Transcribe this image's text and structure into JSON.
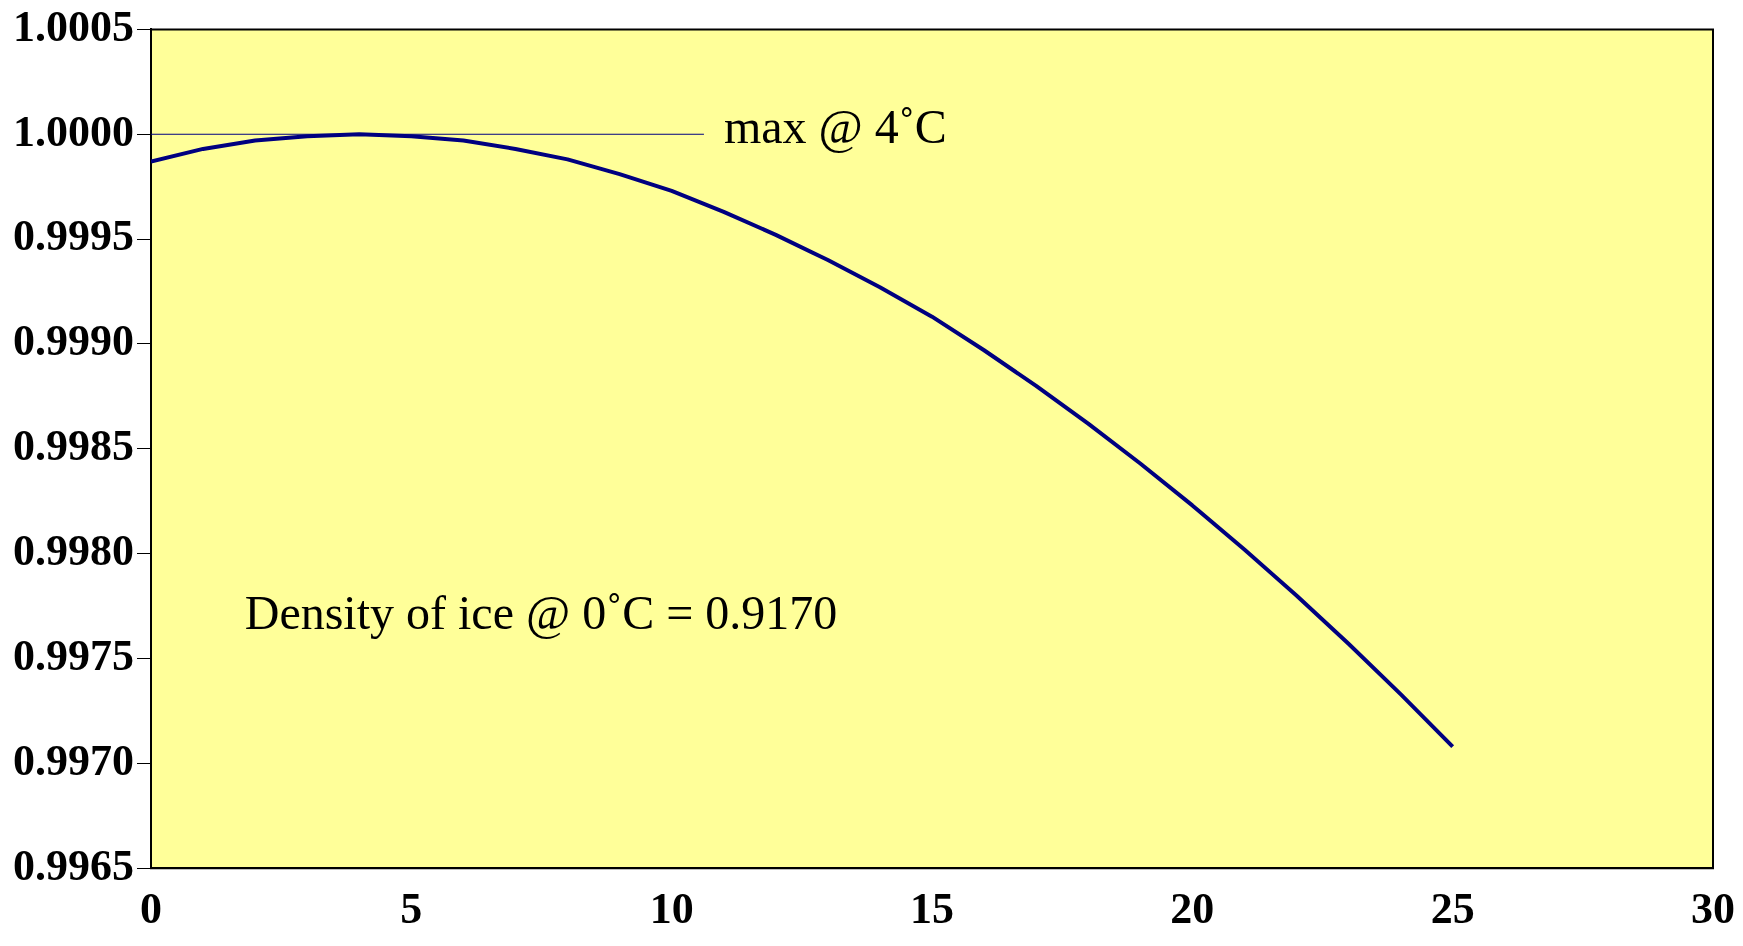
{
  "chart_data": {
    "type": "line",
    "x": [
      0,
      1,
      2,
      3,
      4,
      5,
      6,
      7,
      8,
      9,
      10,
      11,
      12,
      13,
      14,
      15,
      16,
      17,
      18,
      19,
      20,
      21,
      22,
      23,
      24,
      25
    ],
    "series": [
      {
        "color": "#000080",
        "values": [
          0.99987,
          0.99993,
          0.99997,
          0.99999,
          1.0,
          0.99999,
          0.99997,
          0.99993,
          0.99988,
          0.99981,
          0.99973,
          0.99963,
          0.99952,
          0.9994,
          0.99927,
          0.99913,
          0.99897,
          0.9988,
          0.99862,
          0.99843,
          0.99823,
          0.99802,
          0.9978,
          0.99757,
          0.99733,
          0.99708
        ]
      }
    ],
    "xlim": [
      0,
      30
    ],
    "xticks": [
      0,
      5,
      10,
      15,
      20,
      25,
      30
    ],
    "ylim": [
      0.9965,
      1.0005
    ],
    "yticks": [
      {
        "value": 0.9965,
        "label": "0.9965"
      },
      {
        "value": 0.997,
        "label": "0.9970"
      },
      {
        "value": 0.9975,
        "label": "0.9975"
      },
      {
        "value": 0.998,
        "label": "0.9980"
      },
      {
        "value": 0.9985,
        "label": "0.9985"
      },
      {
        "value": 0.999,
        "label": "0.9990"
      },
      {
        "value": 0.9995,
        "label": "0.9995"
      },
      {
        "value": 1.0,
        "label": "1.0000"
      },
      {
        "value": 1.0005,
        "label": "1.0005"
      }
    ],
    "ref_lines": [
      {
        "axis": "y",
        "value": 1.0,
        "label": "max @ 4˚C",
        "color": "#000080"
      }
    ],
    "annotations": [
      "Density of ice @ 0˚C = 0.9170"
    ],
    "grid": false,
    "legend": false,
    "marker": "none",
    "line_style": "solid"
  }
}
